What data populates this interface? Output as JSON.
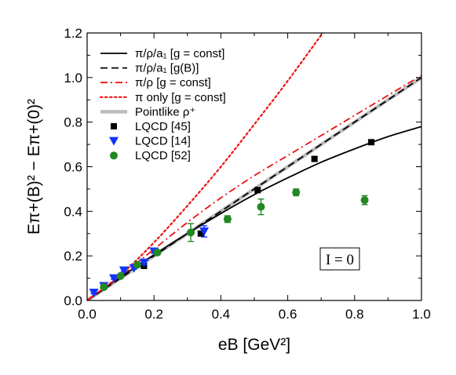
{
  "chart_data": {
    "type": "line",
    "xlabel": "eB [GeV²]",
    "ylabel": "Eπ+(B)² − Eπ+(0)²",
    "xlim": [
      0.0,
      1.0
    ],
    "ylim": [
      0.0,
      1.2
    ],
    "x_ticks": [
      "0.0",
      "0.2",
      "0.4",
      "0.6",
      "0.8",
      "1.0"
    ],
    "y_ticks": [
      "0.0",
      "0.2",
      "0.4",
      "0.6",
      "0.8",
      "1.0",
      "1.2"
    ],
    "legend_position": "top-left",
    "annotation": "I = 0",
    "series": [
      {
        "name": "π/ρ/a₁  [g = const]",
        "kind": "line",
        "color": "#000000",
        "dash": "solid",
        "points": [
          [
            0,
            0
          ],
          [
            0.1,
            0.105
          ],
          [
            0.2,
            0.205
          ],
          [
            0.3,
            0.3
          ],
          [
            0.4,
            0.39
          ],
          [
            0.5,
            0.475
          ],
          [
            0.6,
            0.55
          ],
          [
            0.7,
            0.62
          ],
          [
            0.8,
            0.68
          ],
          [
            0.9,
            0.735
          ],
          [
            1.0,
            0.78
          ]
        ]
      },
      {
        "name": "π/ρ/a₁  [g(B)]",
        "kind": "line",
        "color": "#000000",
        "dash": "dashed",
        "points": [
          [
            0,
            0
          ],
          [
            0.2,
            0.2
          ],
          [
            0.4,
            0.4
          ],
          [
            0.6,
            0.6
          ],
          [
            0.8,
            0.8
          ],
          [
            1.0,
            1.0
          ]
        ]
      },
      {
        "name": "π/ρ  [g = const]",
        "kind": "line",
        "color": "#ee1111",
        "dash": "dashdot",
        "points": [
          [
            0,
            0
          ],
          [
            0.1,
            0.11
          ],
          [
            0.2,
            0.23
          ],
          [
            0.3,
            0.35
          ],
          [
            0.4,
            0.46
          ],
          [
            0.5,
            0.56
          ],
          [
            0.6,
            0.65
          ],
          [
            0.7,
            0.74
          ],
          [
            0.8,
            0.83
          ],
          [
            0.9,
            0.92
          ],
          [
            1.0,
            1.01
          ]
        ]
      },
      {
        "name": "π only  [g = const]",
        "kind": "line",
        "color": "#ee1111",
        "dash": "dotted",
        "points": [
          [
            0,
            0
          ],
          [
            0.1,
            0.115
          ],
          [
            0.2,
            0.26
          ],
          [
            0.3,
            0.425
          ],
          [
            0.4,
            0.6
          ],
          [
            0.5,
            0.79
          ],
          [
            0.6,
            0.985
          ],
          [
            0.7,
            1.19
          ],
          [
            0.71,
            1.21
          ]
        ]
      },
      {
        "name": "Pointlike ρ⁺",
        "kind": "line",
        "color": "#bbbbbb",
        "dash": "solid",
        "points": [
          [
            0,
            0
          ],
          [
            0.2,
            0.2
          ],
          [
            0.4,
            0.4
          ],
          [
            0.6,
            0.6
          ],
          [
            0.8,
            0.8
          ],
          [
            1.0,
            1.0
          ]
        ]
      },
      {
        "name": "LQCD [45]",
        "kind": "scatter",
        "marker": "square",
        "color": "#000000",
        "points": [
          [
            0.17,
            0.155
          ],
          [
            0.34,
            0.3
          ],
          [
            0.51,
            0.495
          ],
          [
            0.68,
            0.635
          ],
          [
            0.85,
            0.71
          ]
        ],
        "errors": [
          0.005,
          0.01,
          0.008,
          0.008,
          0.008
        ]
      },
      {
        "name": "LQCD [14]",
        "kind": "scatter",
        "marker": "triangle-down",
        "color": "#1133ff",
        "points": [
          [
            0.02,
            0.035
          ],
          [
            0.05,
            0.065
          ],
          [
            0.08,
            0.1
          ],
          [
            0.11,
            0.135
          ],
          [
            0.14,
            0.145
          ],
          [
            0.17,
            0.17
          ],
          [
            0.2,
            0.22
          ],
          [
            0.35,
            0.31
          ]
        ],
        "errors": [
          0.005,
          0.005,
          0.005,
          0.005,
          0.005,
          0.008,
          0.008,
          0.025
        ]
      },
      {
        "name": "LQCD [52]",
        "kind": "scatter",
        "marker": "circle",
        "color": "#228822",
        "points": [
          [
            0.05,
            0.06
          ],
          [
            0.1,
            0.11
          ],
          [
            0.15,
            0.16
          ],
          [
            0.21,
            0.215
          ],
          [
            0.31,
            0.305
          ],
          [
            0.42,
            0.365
          ],
          [
            0.52,
            0.42
          ],
          [
            0.625,
            0.485
          ],
          [
            0.83,
            0.45
          ]
        ],
        "errors": [
          0.005,
          0.005,
          0.008,
          0.01,
          0.04,
          0.015,
          0.035,
          0.015,
          0.02
        ]
      }
    ]
  }
}
